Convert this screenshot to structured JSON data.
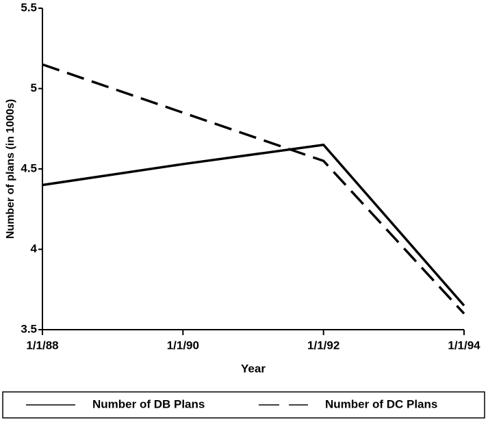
{
  "chart_data": {
    "type": "line",
    "x_label": "Year",
    "y_label": "Number of plans (in 1000s)",
    "categories": [
      "1/1/88",
      "1/1/90",
      "1/1/92",
      "1/1/94"
    ],
    "series": [
      {
        "name": "Number of DB Plans",
        "color": "#000000",
        "dash": "solid",
        "values": [
          4.4,
          4.53,
          4.65,
          3.65
        ]
      },
      {
        "name": "Number of DC Plans",
        "color": "#000000",
        "dash": "dashed",
        "values": [
          5.15,
          4.85,
          4.55,
          3.6
        ]
      }
    ],
    "ylim": [
      3.5,
      5.5
    ],
    "yticks": [
      3.5,
      4,
      4.5,
      5,
      5.5
    ],
    "grid": false,
    "legend": "bottom"
  }
}
